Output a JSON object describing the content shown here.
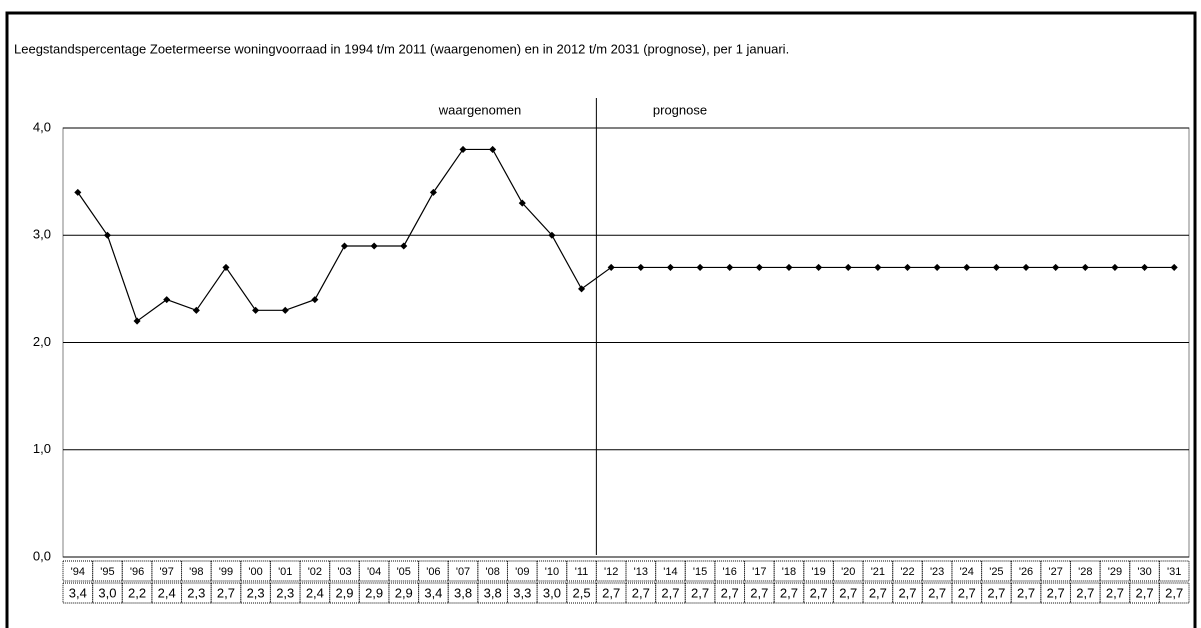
{
  "chart_data": {
    "type": "line",
    "title": "Leegstandspercentage Zoetermeerse woningvoorraad in 1994 t/m 2011 (waargenomen) en in 2012 t/m 2031 (prognose), per 1 januari.",
    "annotations": [
      "waargenomen",
      "prognose"
    ],
    "categories": [
      "'94",
      "'95",
      "'96",
      "'97",
      "'98",
      "'99",
      "'00",
      "'01",
      "'02",
      "'03",
      "'04",
      "'05",
      "'06",
      "'07",
      "'08",
      "'09",
      "'10",
      "'11",
      "'12",
      "'13",
      "'14",
      "'15",
      "'16",
      "'17",
      "'18",
      "'19",
      "'20",
      "'21",
      "'22",
      "'23",
      "'24",
      "'25",
      "'26",
      "'27",
      "'28",
      "'29",
      "'30",
      "'31"
    ],
    "values": [
      3.4,
      3.0,
      2.2,
      2.4,
      2.3,
      2.7,
      2.3,
      2.3,
      2.4,
      2.9,
      2.9,
      2.9,
      3.4,
      3.8,
      3.8,
      3.3,
      3.0,
      2.5,
      2.7,
      2.7,
      2.7,
      2.7,
      2.7,
      2.7,
      2.7,
      2.7,
      2.7,
      2.7,
      2.7,
      2.7,
      2.7,
      2.7,
      2.7,
      2.7,
      2.7,
      2.7,
      2.7,
      2.7
    ],
    "value_labels": [
      "3,4",
      "3,0",
      "2,2",
      "2,4",
      "2,3",
      "2,7",
      "2,3",
      "2,3",
      "2,4",
      "2,9",
      "2,9",
      "2,9",
      "3,4",
      "3,8",
      "3,8",
      "3,3",
      "3,0",
      "2,5",
      "2,7",
      "2,7",
      "2,7",
      "2,7",
      "2,7",
      "2,7",
      "2,7",
      "2,7",
      "2,7",
      "2,7",
      "2,7",
      "2,7",
      "2,7",
      "2,7",
      "2,7",
      "2,7",
      "2,7",
      "2,7",
      "2,7",
      "2,7"
    ],
    "color": "#000000",
    "ylim": [
      0,
      4
    ],
    "yticks": [
      {
        "value": 0,
        "label": "0,0"
      },
      {
        "value": 1,
        "label": "1,0"
      },
      {
        "value": 2,
        "label": "2,0"
      },
      {
        "value": 3,
        "label": "3,0"
      },
      {
        "value": 4,
        "label": "4,0"
      }
    ],
    "grid": true
  }
}
